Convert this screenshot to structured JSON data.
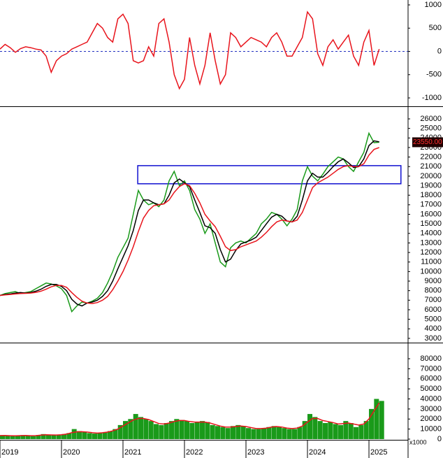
{
  "chart_data": [
    {
      "type": "line",
      "ylim": [
        -1150,
        1075
      ],
      "yticks": [
        -1000,
        -500,
        0,
        500,
        1000
      ],
      "zero_line": true,
      "series": [
        {
          "color": "#e8141c",
          "values": [
            50,
            150,
            80,
            -20,
            60,
            100,
            80,
            50,
            30,
            -100,
            -450,
            -200,
            -100,
            -50,
            50,
            100,
            150,
            200,
            400,
            600,
            500,
            300,
            200,
            700,
            800,
            600,
            -200,
            -250,
            -200,
            100,
            -100,
            600,
            700,
            200,
            -500,
            -800,
            -600,
            300,
            -300,
            -700,
            -300,
            400,
            -200,
            -700,
            -500,
            400,
            300,
            100,
            200,
            300,
            250,
            200,
            100,
            300,
            400,
            200,
            -100,
            -100,
            100,
            300,
            850,
            700,
            -50,
            -300,
            100,
            250,
            50,
            200,
            350,
            -100,
            -300,
            200,
            450,
            -300,
            50
          ]
        }
      ]
    },
    {
      "type": "line",
      "x": [
        2019,
        2019.083,
        2019.167,
        2019.25,
        2019.333,
        2019.417,
        2019.5,
        2019.583,
        2019.667,
        2019.75,
        2019.833,
        2019.917,
        2020,
        2020.083,
        2020.167,
        2020.25,
        2020.333,
        2020.417,
        2020.5,
        2020.583,
        2020.667,
        2020.75,
        2020.833,
        2020.917,
        2021,
        2021.083,
        2021.167,
        2021.25,
        2021.333,
        2021.417,
        2021.5,
        2021.583,
        2021.667,
        2021.75,
        2021.833,
        2021.917,
        2022,
        2022.083,
        2022.167,
        2022.25,
        2022.333,
        2022.417,
        2022.5,
        2022.583,
        2022.667,
        2022.75,
        2022.833,
        2022.917,
        2023,
        2023.083,
        2023.167,
        2023.25,
        2023.333,
        2023.417,
        2023.5,
        2023.583,
        2023.667,
        2023.75,
        2023.833,
        2023.917,
        2024,
        2024.083,
        2024.167,
        2024.25,
        2024.333,
        2024.417,
        2024.5,
        2024.583,
        2024.667,
        2024.75,
        2024.833,
        2024.917,
        2025,
        2025.083,
        2025.167
      ],
      "xlim": [
        2019,
        2025.636
      ],
      "ylim": [
        2700,
        27100
      ],
      "yticks": [
        3000,
        4000,
        5000,
        6000,
        7000,
        8000,
        9000,
        10000,
        11000,
        12000,
        13000,
        14000,
        15000,
        16000,
        17000,
        18000,
        19000,
        20000,
        21000,
        22000,
        23000,
        24000,
        25000,
        26000
      ],
      "series": [
        {
          "color": "#1a9a1a",
          "values": [
            7500,
            7700,
            7800,
            7900,
            7700,
            7800,
            7900,
            8200,
            8500,
            8800,
            8700,
            8500,
            8200,
            7500,
            5800,
            6400,
            6800,
            6700,
            6900,
            7200,
            7800,
            8800,
            10000,
            11500,
            12500,
            13500,
            16000,
            18500,
            17500,
            17000,
            17200,
            16800,
            17500,
            19500,
            20500,
            19000,
            19500,
            18500,
            16500,
            15500,
            14000,
            15000,
            13000,
            11000,
            10500,
            12500,
            13000,
            13200,
            13000,
            13500,
            14000,
            15000,
            15500,
            16200,
            16000,
            15500,
            14800,
            15500,
            16500,
            19500,
            21000,
            20000,
            19500,
            20200,
            21000,
            21500,
            22000,
            21800,
            21000,
            20500,
            21500,
            22500,
            24500,
            23500,
            23550
          ]
        },
        {
          "color": "#000000",
          "values": [
            7500,
            7600,
            7650,
            7750,
            7800,
            7750,
            7800,
            7950,
            8150,
            8450,
            8650,
            8650,
            8450,
            8000,
            7100,
            6600,
            6400,
            6700,
            6800,
            7000,
            7400,
            8000,
            9000,
            10300,
            11500,
            12700,
            14300,
            16400,
            17500,
            17500,
            17200,
            17000,
            17100,
            18000,
            19300,
            19700,
            19300,
            18900,
            17500,
            16200,
            14800,
            14600,
            14000,
            12300,
            11000,
            11300,
            12200,
            12900,
            13100,
            13300,
            13600,
            14300,
            15000,
            15700,
            16000,
            15800,
            15300,
            15200,
            15800,
            17500,
            19500,
            20300,
            19900,
            19900,
            20400,
            21000,
            21500,
            21800,
            21400,
            20900,
            21000,
            21800,
            23200,
            23700,
            23600
          ]
        },
        {
          "color": "#e8141c",
          "values": [
            7500,
            7550,
            7600,
            7650,
            7700,
            7720,
            7750,
            7820,
            7950,
            8150,
            8400,
            8550,
            8550,
            8350,
            7800,
            7300,
            6900,
            6700,
            6650,
            6750,
            7000,
            7400,
            8100,
            9000,
            10000,
            11200,
            12600,
            14200,
            15600,
            16400,
            16900,
            17000,
            17100,
            17500,
            18300,
            18900,
            19200,
            19000,
            18200,
            17200,
            16000,
            15300,
            14700,
            13700,
            12600,
            12200,
            12300,
            12600,
            12800,
            13000,
            13200,
            13600,
            14100,
            14700,
            15200,
            15400,
            15300,
            15200,
            15400,
            16200,
            17500,
            18800,
            19300,
            19600,
            19900,
            20300,
            20700,
            21000,
            21100,
            21000,
            21000,
            21300,
            22200,
            22800,
            23000
          ]
        }
      ],
      "last_value_label": "23550.00",
      "box": {
        "x": [
          2021.24,
          2025.52
        ],
        "y": [
          19200,
          21100
        ],
        "color": "#1010d0"
      }
    },
    {
      "type": "bar",
      "ylim": [
        0,
        94600
      ],
      "yticks": [
        0,
        10000,
        20000,
        30000,
        40000,
        50000,
        60000,
        70000,
        80000
      ],
      "xticks": [
        2019,
        2020,
        2021,
        2022,
        2023,
        2024,
        2025
      ],
      "unit_label": "x1000",
      "series": [
        {
          "color": "#1a9a1a",
          "values": [
            4000,
            3500,
            3000,
            3500,
            4000,
            3500,
            3000,
            4000,
            5000,
            4500,
            4000,
            4000,
            5000,
            6000,
            10000,
            8000,
            7000,
            6000,
            5500,
            6000,
            7000,
            8000,
            10000,
            14000,
            18000,
            20000,
            25000,
            22000,
            20000,
            18000,
            15000,
            14000,
            16000,
            18000,
            20000,
            19000,
            18000,
            16000,
            17000,
            18000,
            17000,
            14000,
            13000,
            12000,
            11000,
            13000,
            14000,
            13000,
            11000,
            10000,
            10000,
            11000,
            12000,
            13000,
            12000,
            11000,
            10000,
            10000,
            12000,
            18000,
            25000,
            22000,
            18000,
            16000,
            17000,
            15000,
            14000,
            18000,
            16000,
            12000,
            14000,
            18000,
            30000,
            40000,
            38000
          ]
        },
        {
          "type": "line",
          "color": "#e8141c",
          "values": [
            3500,
            3600,
            3400,
            3300,
            3500,
            3600,
            3400,
            3500,
            4000,
            4300,
            4200,
            4100,
            4400,
            5000,
            6500,
            7200,
            7400,
            7000,
            6400,
            6000,
            6300,
            7000,
            8200,
            10000,
            13000,
            16000,
            19000,
            20500,
            20500,
            19500,
            17500,
            15500,
            15000,
            16000,
            17500,
            18500,
            18500,
            17500,
            17000,
            17000,
            17000,
            16000,
            14500,
            13000,
            12000,
            12000,
            12500,
            13000,
            12500,
            11500,
            10500,
            10500,
            11000,
            12000,
            12500,
            12000,
            11000,
            10500,
            11000,
            13000,
            17000,
            20500,
            20500,
            18500,
            17500,
            16500,
            15000,
            15500,
            16000,
            15000,
            14000,
            15000,
            20000,
            28000,
            36000
          ]
        }
      ]
    }
  ]
}
